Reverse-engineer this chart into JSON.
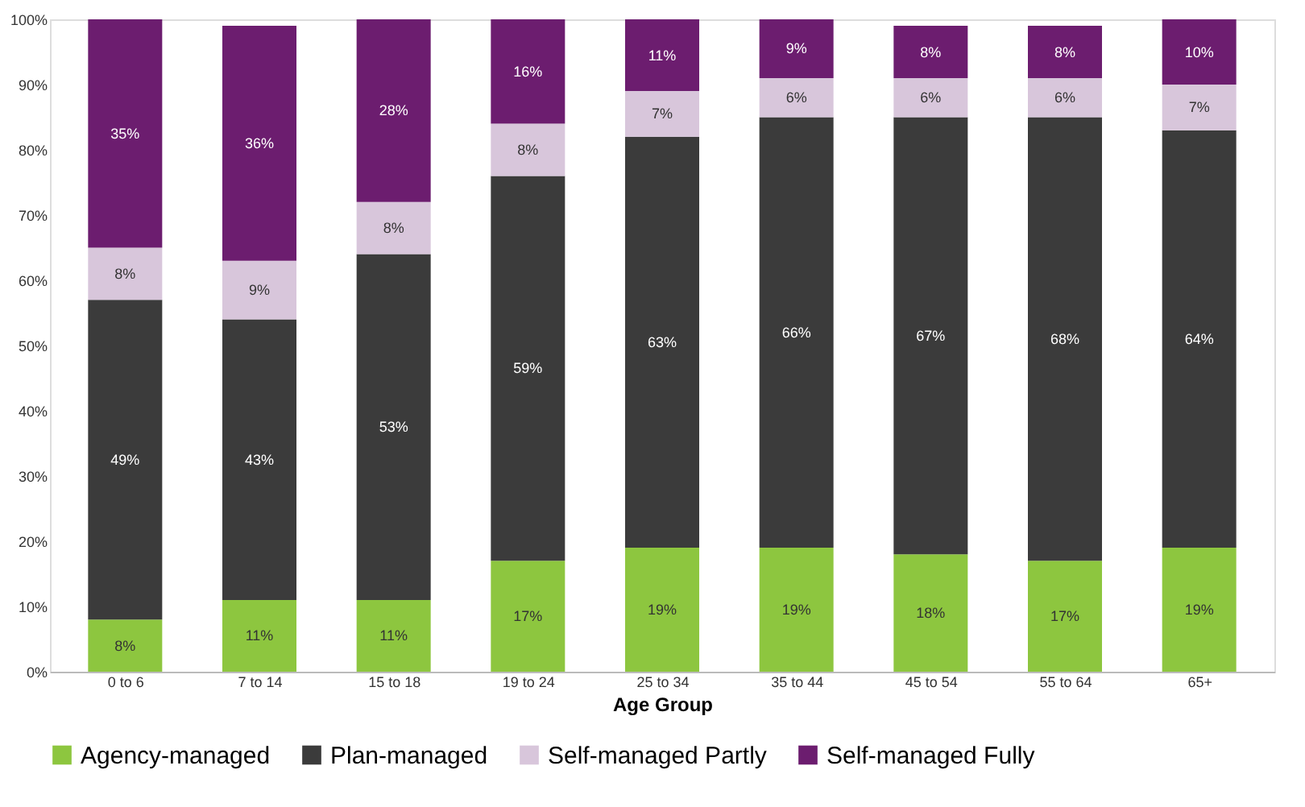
{
  "chart_data": {
    "type": "bar",
    "stacked": true,
    "xlabel": "Age Group",
    "categories": [
      "0 to 6",
      "7 to 14",
      "15 to 18",
      "19 to 24",
      "25 to 34",
      "35 to 44",
      "45 to 54",
      "55 to 64",
      "65+"
    ],
    "series": [
      {
        "name": "Agency-managed",
        "color": "#8dc63f",
        "values": [
          8,
          11,
          11,
          17,
          19,
          19,
          18,
          17,
          19
        ],
        "value_labels": [
          "8%",
          "11%",
          "11%",
          "17%",
          "19%",
          "19%",
          "18%",
          "17%",
          "19%"
        ]
      },
      {
        "name": "Plan-managed",
        "color": "#3b3b3b",
        "values": [
          49,
          43,
          53,
          59,
          63,
          66,
          67,
          68,
          64
        ],
        "value_labels": [
          "49%",
          "43%",
          "53%",
          "59%",
          "63%",
          "66%",
          "67%",
          "68%",
          "64%"
        ]
      },
      {
        "name": "Self-managed Partly",
        "color": "#d8c6db",
        "values": [
          8,
          9,
          8,
          8,
          7,
          6,
          6,
          6,
          7
        ],
        "value_labels": [
          "8%",
          "9%",
          "8%",
          "8%",
          "7%",
          "6%",
          "6%",
          "6%",
          "7%"
        ]
      },
      {
        "name": "Self-managed Fully",
        "color": "#6c1d6f",
        "values": [
          35,
          36,
          28,
          16,
          11,
          9,
          8,
          8,
          10
        ],
        "value_labels": [
          "35%",
          "36%",
          "28%",
          "16%",
          "11%",
          "9%",
          "8%",
          "8%",
          "10%"
        ]
      }
    ],
    "ylim": [
      0,
      100
    ],
    "yticks": [
      {
        "value": 0,
        "label": "0%"
      },
      {
        "value": 10,
        "label": "10%"
      },
      {
        "value": 20,
        "label": "20%"
      },
      {
        "value": 30,
        "label": "30%"
      },
      {
        "value": 40,
        "label": "40%"
      },
      {
        "value": 50,
        "label": "50%"
      },
      {
        "value": 60,
        "label": "60%"
      },
      {
        "value": 70,
        "label": "70%"
      },
      {
        "value": 80,
        "label": "80%"
      },
      {
        "value": 90,
        "label": "90%"
      },
      {
        "value": 100,
        "label": "100%"
      }
    ],
    "grid": false,
    "legend": "bottom"
  }
}
